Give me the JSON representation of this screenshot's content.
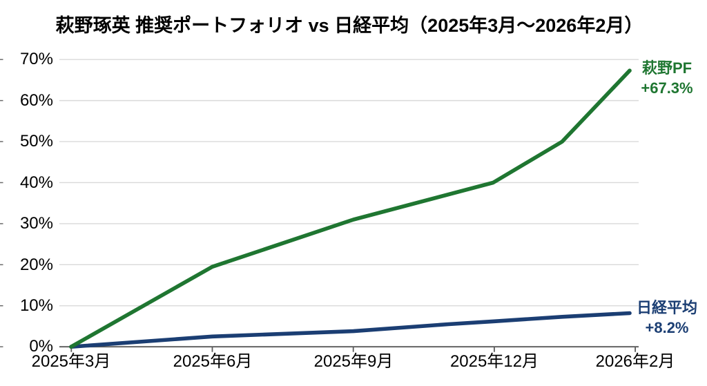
{
  "chart_data": {
    "type": "line",
    "title": "萩野琢英 推奨ポートフォリオ vs 日経平均（2025年3月〜2026年2月）",
    "grid": true,
    "legend_position": "line-end-labels",
    "y_axis": {
      "unit": "%",
      "min": 0,
      "max": 70,
      "step": 10,
      "tick_labels": [
        "70%",
        "60%",
        "50%",
        "40%",
        "30%",
        "20%",
        "10%",
        "0%"
      ]
    },
    "x_axis": {
      "tick_labels": [
        "2025年3月",
        "2025年6月",
        "2025年9月",
        "2025年12月",
        "2026年2月"
      ],
      "range_label": "2025年3月〜2026年2月"
    },
    "series": [
      {
        "name": "萩野PF",
        "color": "#1f7631",
        "end_label": "萩野PF",
        "end_value_label": "+67.3%",
        "final_return_pct": 67.3,
        "points": [
          {
            "day": 0,
            "value": 0
          },
          {
            "day": 92,
            "value": 19.5
          },
          {
            "day": 184,
            "value": 31
          },
          {
            "day": 275,
            "value": 40
          },
          {
            "day": 320,
            "value": 50
          },
          {
            "day": 364,
            "value": 67.3
          }
        ]
      },
      {
        "name": "日経平均",
        "color": "#1b3e73",
        "end_label": "日経平均",
        "end_value_label": "+8.2%",
        "final_return_pct": 8.2,
        "points": [
          {
            "day": 0,
            "value": 0
          },
          {
            "day": 92,
            "value": 2.5
          },
          {
            "day": 184,
            "value": 3.8
          },
          {
            "day": 246,
            "value": 5.5
          },
          {
            "day": 275,
            "value": 6.2
          },
          {
            "day": 320,
            "value": 7.3
          },
          {
            "day": 364,
            "value": 8.2
          }
        ]
      }
    ]
  }
}
